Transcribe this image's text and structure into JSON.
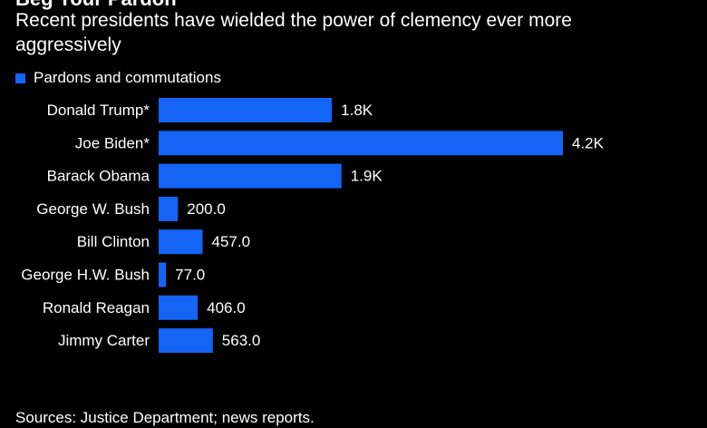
{
  "title": "Beg Your Pardon",
  "subtitle": "Recent presidents have wielded the power of clemency ever more aggressively",
  "source": "Sources: Justice Department; news reports.",
  "colors": {
    "background": "#000000",
    "bar": "#1464f6",
    "text": "#ffffff"
  },
  "chart_data": {
    "type": "bar",
    "orientation": "horizontal",
    "title": "Beg Your Pardon",
    "subtitle": "Recent presidents have wielded the power of clemency ever more aggressively",
    "legend_position": "top-left",
    "grid": false,
    "xlim": [
      0,
      4200
    ],
    "categories": [
      "Donald Trump*",
      "Joe Biden*",
      "Barack Obama",
      "George W. Bush",
      "Bill Clinton",
      "George H.W. Bush",
      "Ronald Reagan",
      "Jimmy Carter"
    ],
    "series": [
      {
        "name": "Pardons and commutations",
        "values": [
          1800,
          4200,
          1900,
          200,
          457,
          77,
          406,
          563
        ],
        "labels": [
          "1.8K",
          "4.2K",
          "1.9K",
          "200.0",
          "457.0",
          "77.0",
          "406.0",
          "563.0"
        ]
      }
    ]
  }
}
